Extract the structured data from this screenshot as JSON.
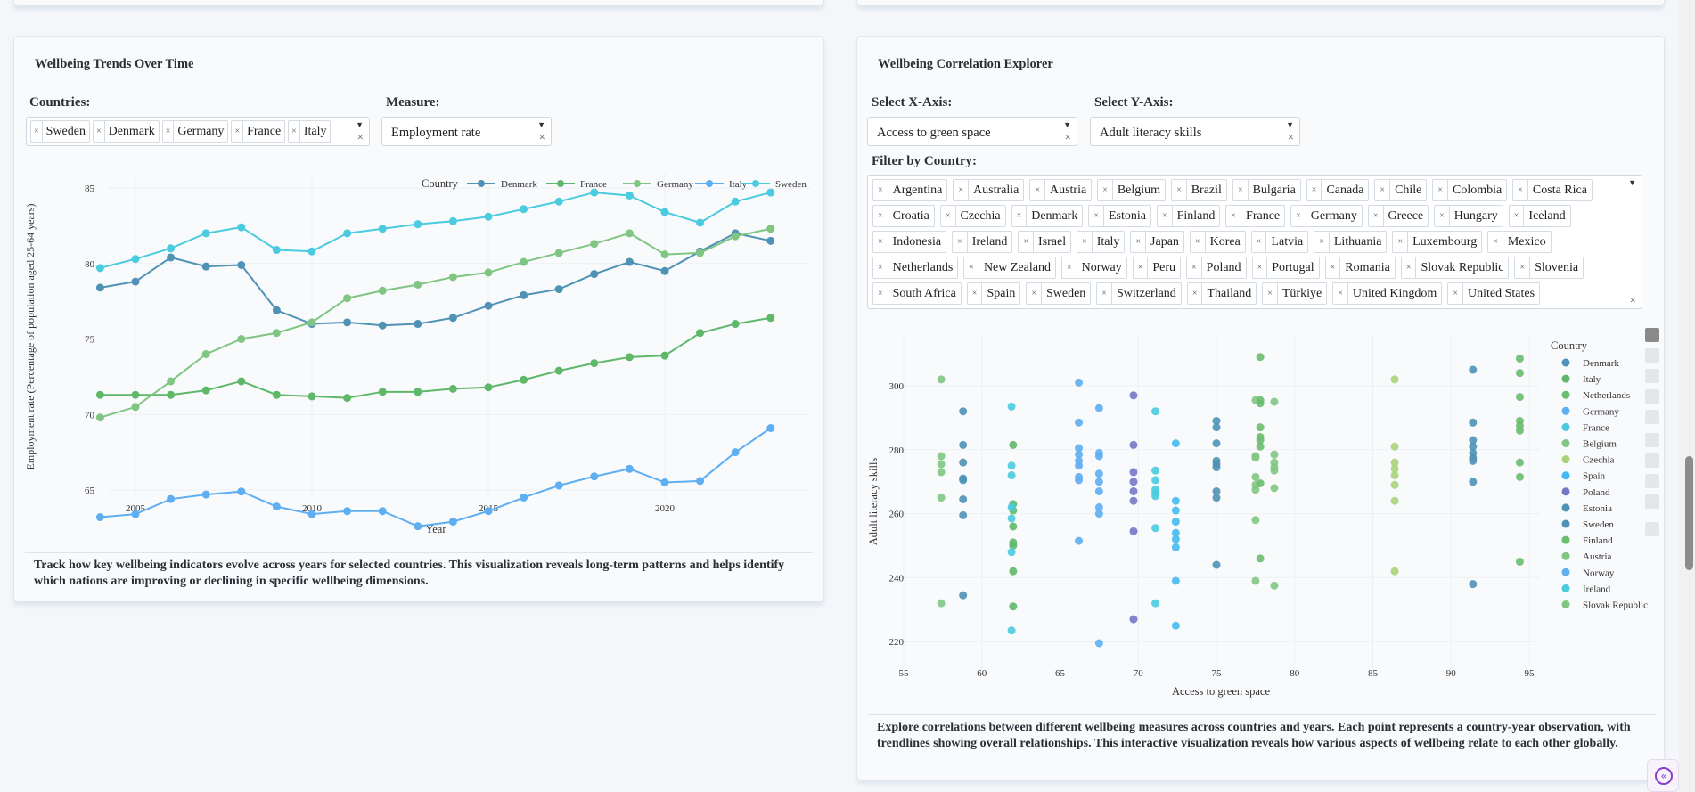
{
  "trends": {
    "title": "Wellbeing Trends Over Time",
    "countries_label": "Countries:",
    "selected_countries": [
      "Sweden",
      "Denmark",
      "Germany",
      "France",
      "Italy"
    ],
    "measure_label": "Measure:",
    "measure_value": "Employment rate",
    "description": "Track how key wellbeing indicators evolve across years for selected countries. This visualization reveals long-term patterns and helps identify which nations are improving or declining in specific wellbeing dimensions."
  },
  "correlation": {
    "title": "Wellbeing Correlation Explorer",
    "x_label": "Select X-Axis:",
    "x_value": "Access to green space",
    "y_label": "Select Y-Axis:",
    "y_value": "Adult literacy skills",
    "filter_label": "Filter by Country:",
    "filter_countries": [
      "Argentina",
      "Australia",
      "Austria",
      "Belgium",
      "Brazil",
      "Bulgaria",
      "Canada",
      "Chile",
      "Colombia",
      "Costa Rica",
      "Croatia",
      "Czechia",
      "Denmark",
      "Estonia",
      "Finland",
      "France",
      "Germany",
      "Greece",
      "Hungary",
      "Iceland",
      "Indonesia",
      "Ireland",
      "Israel",
      "Italy",
      "Japan",
      "Korea",
      "Latvia",
      "Lithuania",
      "Luxembourg",
      "Mexico",
      "Netherlands",
      "New Zealand",
      "Norway",
      "Peru",
      "Poland",
      "Portugal",
      "Romania",
      "Slovak Republic",
      "Slovenia",
      "South Africa",
      "Spain",
      "Sweden",
      "Switzerland",
      "Thailand",
      "Türkiye",
      "United Kingdom",
      "United States"
    ],
    "description": "Explore correlations between different wellbeing measures across countries and years. Each point represents a country-year observation, with trendlines showing overall relationships. This interactive visualization reveals how various aspects of wellbeing relate to each other globally."
  },
  "modebar_icons": [
    "bar-chart-icon",
    "zoom-in-icon",
    "zoom-out-icon",
    "autoscale-icon",
    "home-icon",
    "zoom-icon",
    "pan-icon",
    "box-select-icon",
    "lasso-icon",
    "camera-icon"
  ],
  "chart_data": [
    {
      "type": "line",
      "xlabel": "Year",
      "ylabel": "Employment rate (Percentage of population aged 25-64 years)",
      "legend_title": "Country",
      "legend_placement": "top-right",
      "grid": true,
      "x": [
        2004,
        2005,
        2006,
        2007,
        2008,
        2009,
        2010,
        2011,
        2012,
        2013,
        2014,
        2015,
        2016,
        2017,
        2018,
        2019,
        2020,
        2021,
        2022,
        2023
      ],
      "x_ticks": [
        2005,
        2010,
        2015,
        2020
      ],
      "y_ticks": [
        65,
        70,
        75,
        80,
        85
      ],
      "xlim": [
        2003,
        2024
      ],
      "ylim": [
        61.8,
        86
      ],
      "series": [
        {
          "name": "Denmark",
          "color": "#4f92b6",
          "values": [
            78.4,
            78.8,
            80.4,
            79.8,
            79.9,
            76.9,
            76.0,
            76.1,
            75.9,
            76.0,
            76.4,
            77.2,
            77.9,
            78.3,
            79.3,
            80.1,
            79.5,
            80.8,
            82.0,
            81.5
          ]
        },
        {
          "name": "France",
          "color": "#5fb86a",
          "values": [
            71.3,
            71.3,
            71.3,
            71.6,
            72.2,
            71.3,
            71.2,
            71.1,
            71.5,
            71.5,
            71.7,
            71.8,
            72.3,
            72.9,
            73.4,
            73.8,
            73.9,
            75.4,
            76.0,
            76.4
          ]
        },
        {
          "name": "Germany",
          "color": "#80c682",
          "values": [
            69.8,
            70.5,
            72.2,
            74.0,
            75.0,
            75.4,
            76.1,
            77.7,
            78.2,
            78.6,
            79.1,
            79.4,
            80.1,
            80.7,
            81.3,
            82.0,
            80.6,
            80.7,
            81.8,
            82.3
          ]
        },
        {
          "name": "Italy",
          "color": "#5eaef2",
          "values": [
            63.2,
            63.4,
            64.4,
            64.7,
            64.9,
            63.9,
            63.4,
            63.6,
            63.6,
            62.6,
            62.9,
            63.6,
            64.5,
            65.3,
            65.9,
            66.4,
            65.5,
            65.6,
            67.5,
            69.1
          ]
        },
        {
          "name": "Sweden",
          "color": "#4acbdf",
          "values": [
            79.7,
            80.3,
            81.0,
            82.0,
            82.4,
            80.9,
            80.8,
            82.0,
            82.3,
            82.6,
            82.8,
            83.1,
            83.6,
            84.1,
            84.7,
            84.5,
            83.4,
            82.7,
            84.1,
            84.7
          ]
        }
      ]
    },
    {
      "type": "scatter",
      "xlabel": "Access to green space",
      "ylabel": "Adult literacy skills",
      "legend_title": "Country",
      "legend_placement": "right",
      "grid": true,
      "x_ticks": [
        55,
        60,
        65,
        70,
        75,
        80,
        85,
        90,
        95
      ],
      "y_ticks": [
        220,
        240,
        260,
        280,
        300
      ],
      "xlim": [
        54,
        97
      ],
      "ylim": [
        216,
        313
      ],
      "series": [
        {
          "name": "Denmark",
          "color": "#4f92b6",
          "x": 75.0,
          "y": [
            289,
            287,
            282,
            276.5,
            275.5,
            274.5,
            267,
            265,
            244
          ]
        },
        {
          "name": "Italy",
          "color": "#5fb86a",
          "x": 62.0,
          "y": [
            281.5,
            263,
            261,
            256,
            251,
            250,
            242,
            231
          ]
        },
        {
          "name": "Netherlands",
          "color": "#6bbd6f",
          "x": 94.4,
          "y": [
            308.5,
            304,
            296.5,
            289,
            287.5,
            286,
            276,
            271.5,
            245
          ]
        },
        {
          "name": "Germany",
          "color": "#5eaef2",
          "x": 66.2,
          "y": [
            301,
            288.5,
            280.5,
            278.5,
            276.5,
            275,
            271.5,
            270.5,
            251.5
          ]
        },
        {
          "name": "France",
          "color": "#4acbdf",
          "x": 61.9,
          "y": [
            293.5,
            275,
            272,
            262,
            258.5,
            248,
            223.5
          ]
        },
        {
          "name": "Belgium",
          "color": "#80c682",
          "x": 77.5,
          "y": [
            295.5,
            278,
            277.5,
            271.5,
            269,
            267.5,
            258,
            239
          ]
        },
        {
          "name": "Czechia",
          "color": "#a9d37a",
          "x": 86.4,
          "y": [
            302,
            281,
            276,
            274,
            272,
            269,
            264,
            242
          ]
        },
        {
          "name": "Spain",
          "color": "#45baf2",
          "x": 72.4,
          "y": [
            282,
            264,
            261,
            257.5,
            254,
            252,
            249.5,
            239,
            225
          ]
        },
        {
          "name": "Poland",
          "color": "#7478c8",
          "x": 69.7,
          "y": [
            297,
            281.5,
            273,
            270,
            267,
            264,
            254.5,
            227
          ]
        },
        {
          "name": "Estonia",
          "color": "#4f92b6",
          "x": 58.8,
          "y": [
            292,
            281.5,
            276,
            271,
            270.5,
            264.5,
            259.5,
            234.5
          ]
        },
        {
          "name": "Sweden",
          "color": "#4f92b6",
          "x": 91.4,
          "y": [
            305,
            288.5,
            283,
            281,
            279,
            277.5,
            276.5,
            270,
            238
          ]
        },
        {
          "name": "Finland",
          "color": "#6bbd6f",
          "x": 77.8,
          "y": [
            309,
            295.5,
            294.5,
            287,
            284,
            283,
            281,
            269.5,
            246
          ]
        },
        {
          "name": "Austria",
          "color": "#80c682",
          "x": 78.7,
          "y": [
            295,
            278.5,
            276,
            274.5,
            273.5,
            268,
            237.5
          ]
        },
        {
          "name": "Norway",
          "color": "#5eaef2",
          "x": 67.5,
          "y": [
            293,
            279,
            278,
            272.5,
            270,
            267,
            262,
            260,
            219.5
          ]
        },
        {
          "name": "Ireland",
          "color": "#4acbdf",
          "x": 71.1,
          "y": [
            292,
            273.5,
            270.5,
            267.5,
            266.5,
            265.5,
            255.5,
            232
          ]
        },
        {
          "name": "Slovak Republic",
          "color": "#80c682",
          "x": 57.4,
          "y": [
            302,
            278,
            275.5,
            273,
            265,
            232
          ]
        }
      ]
    }
  ]
}
